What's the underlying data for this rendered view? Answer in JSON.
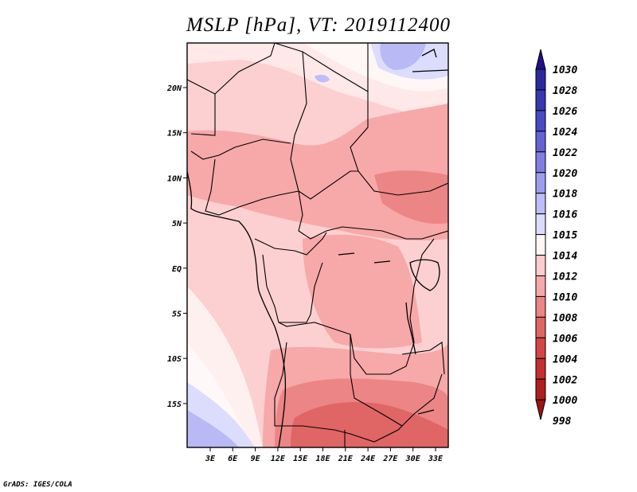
{
  "title": "MSLP [hPa], VT: 2019112400",
  "credit": "GrADS: IGES/COLA",
  "map": {
    "lon_ticks": [
      "3E",
      "6E",
      "9E",
      "12E",
      "15E",
      "18E",
      "21E",
      "24E",
      "27E",
      "30E",
      "33E"
    ],
    "lat_ticks": [
      "20N",
      "15N",
      "10N",
      "5N",
      "EQ",
      "5S",
      "10S",
      "15S"
    ]
  },
  "colorbar": {
    "levels": [
      "1030",
      "1028",
      "1026",
      "1024",
      "1022",
      "1020",
      "1018",
      "1016",
      "1015",
      "1014",
      "1012",
      "1010",
      "1008",
      "1006",
      "1004",
      "1002",
      "1000",
      "998"
    ],
    "colors": [
      "#201088",
      "#2a2a9e",
      "#3838b0",
      "#4a4ac4",
      "#6363d4",
      "#7f7fe3",
      "#9d9df0",
      "#bdbdf8",
      "#dcdcfc",
      "#fff5f5",
      "#fccbcb",
      "#f7a8a8",
      "#ec8585",
      "#e06565",
      "#d44646",
      "#c52f2f",
      "#b01f1f",
      "#9a1515"
    ]
  }
}
